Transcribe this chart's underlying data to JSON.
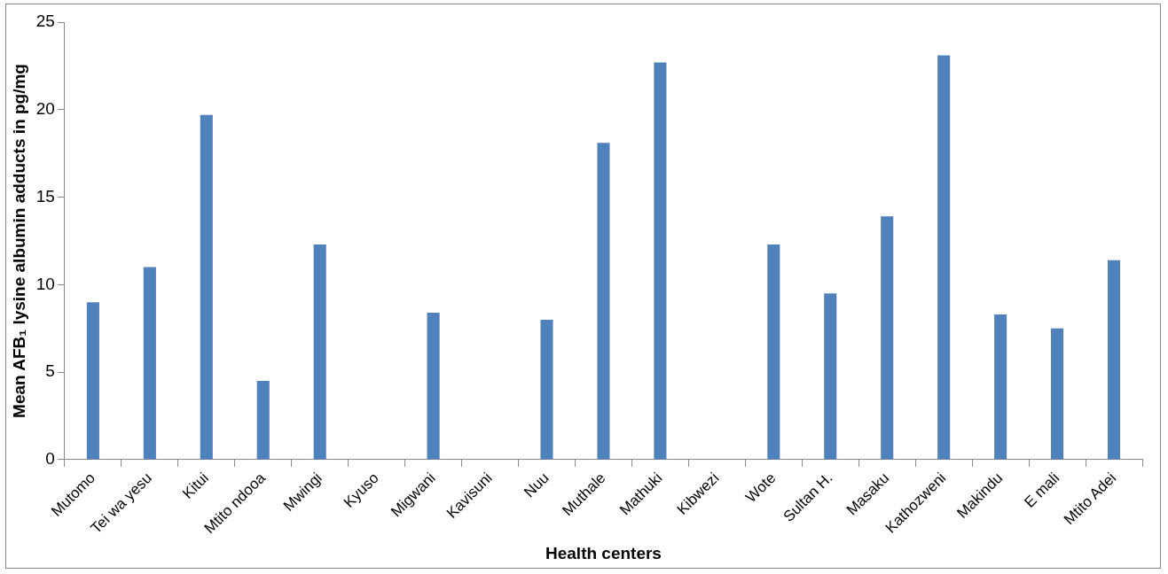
{
  "chart_data": {
    "type": "bar",
    "xlabel": "Health centers",
    "ylabel": "Mean AFB₁ lysine albumin adducts in pg/mg",
    "categories": [
      "Mutomo",
      "Tei wa yesu",
      "Kitui",
      "Mtito ndooa",
      "Mwingi",
      "Kyuso",
      "Migwani",
      "Kavisuni",
      "Nuu",
      "Muthale",
      "Mathuki",
      "Kibwezi",
      "Wote",
      "Sultan H.",
      "Masaku",
      "Kathozweni",
      "Makindu",
      "E mali",
      "Mtito Adei"
    ],
    "values": [
      9.0,
      11.0,
      19.7,
      4.5,
      12.3,
      0,
      8.4,
      0,
      8.0,
      18.1,
      22.7,
      0,
      12.3,
      9.5,
      13.9,
      23.1,
      8.3,
      7.5,
      11.4
    ],
    "color": "#4f81bd",
    "ylim": [
      0,
      25
    ],
    "yticks": [
      0,
      5,
      10,
      15,
      20,
      25
    ],
    "grid": false,
    "legend": false
  }
}
